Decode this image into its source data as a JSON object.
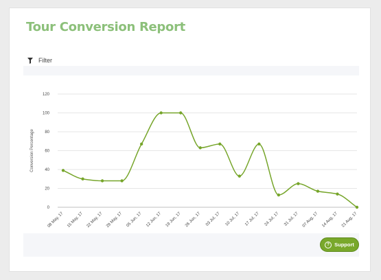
{
  "report": {
    "title": "Tour Conversion Report"
  },
  "filter": {
    "label": "Filter",
    "icon": "funnel-icon"
  },
  "support": {
    "label": "Support",
    "icon": "question-circle-icon"
  },
  "colors": {
    "title": "#8cc07a",
    "line": "#76a52a",
    "support": "#79a82b"
  },
  "chart_data": {
    "type": "line",
    "ylabel": "Conversion Percentage",
    "ylim": [
      0,
      120
    ],
    "yticks": [
      0,
      20,
      40,
      60,
      80,
      100,
      120
    ],
    "grid": true,
    "smooth": true,
    "categories": [
      "08 May, 17",
      "15 May, 17",
      "22 May, 17",
      "29 May, 17",
      "05 Jun, 17",
      "12 Jun, 17",
      "19 Jun, 17",
      "26 Jun, 17",
      "03 Jul, 17",
      "10 Jul, 17",
      "17 Jul, 17",
      "24 Jul, 17",
      "31 Jul, 17",
      "07 Aug, 17",
      "14 Aug, 17",
      "21 Aug, 17"
    ],
    "series": [
      {
        "values": [
          39,
          30,
          28,
          28,
          67,
          100,
          100,
          63,
          67,
          33,
          67,
          13,
          25,
          17,
          14,
          0
        ]
      }
    ]
  }
}
